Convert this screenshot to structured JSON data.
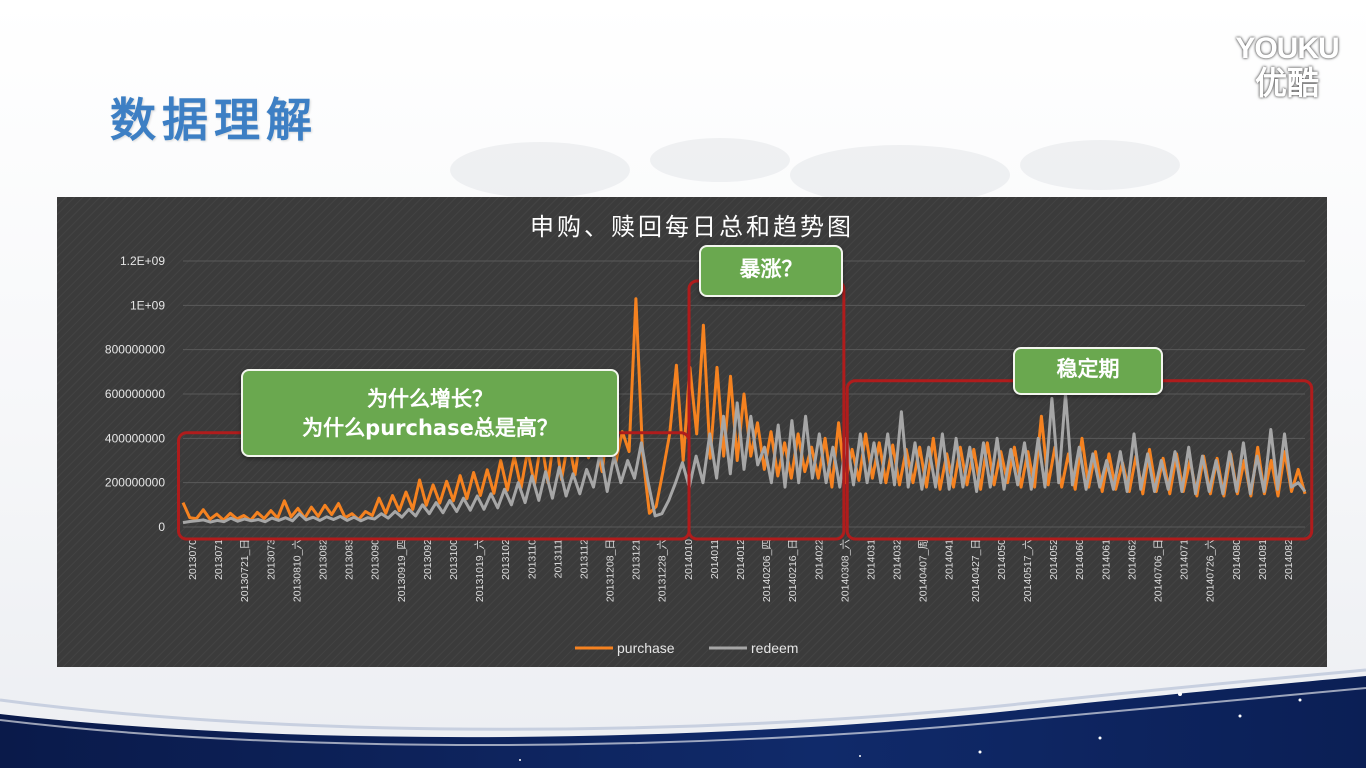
{
  "slide": {
    "title": "数据理解",
    "logo_line1": "YOUKU",
    "logo_line2": "优酷"
  },
  "chart_data": {
    "type": "line",
    "title": "申购、赎回每日总和趋势图",
    "xlabel": "",
    "ylabel": "",
    "ylim": [
      0,
      1200000000
    ],
    "ytick_labels": [
      "0",
      "200000000",
      "400000000",
      "600000000",
      "800000000",
      "1E+09",
      "1.2E+09"
    ],
    "ytick_values": [
      0,
      200000000,
      400000000,
      600000000,
      800000000,
      1000000000,
      1200000000
    ],
    "grid": true,
    "legend": "bottom",
    "xtick_labels": [
      "2013070",
      "2013071",
      "20130721_日",
      "2013073",
      "20130810_六",
      "2013082",
      "2013083",
      "2013090",
      "20130919_四",
      "2013092",
      "2013100",
      "20131019_六",
      "2013102",
      "2013110",
      "2013111",
      "2013112",
      "20131208_日",
      "2013121",
      "20131228_六",
      "2014010",
      "2014011",
      "2014012",
      "20140206_四",
      "20140216_日",
      "2014022",
      "20140308_六",
      "2014031",
      "2014032",
      "20140407_周",
      "2014041",
      "20140427_日",
      "2014050",
      "20140517_六",
      "2014052",
      "2014060",
      "2014061",
      "2014062",
      "20140706_日",
      "2014071",
      "20140726_六",
      "2014080",
      "2014081",
      "2014082"
    ],
    "series": [
      {
        "name": "purchase",
        "color": "#f58220",
        "values": [
          110000000,
          42000000,
          38000000,
          78000000,
          35000000,
          58000000,
          31000000,
          62000000,
          36000000,
          52000000,
          30000000,
          66000000,
          38000000,
          74000000,
          40000000,
          118000000,
          46000000,
          84000000,
          40000000,
          90000000,
          48000000,
          98000000,
          56000000,
          106000000,
          42000000,
          60000000,
          34000000,
          70000000,
          52000000,
          130000000,
          62000000,
          142000000,
          74000000,
          158000000,
          80000000,
          212000000,
          98000000,
          190000000,
          108000000,
          206000000,
          118000000,
          232000000,
          128000000,
          246000000,
          142000000,
          258000000,
          152000000,
          300000000,
          166000000,
          320000000,
          176000000,
          346000000,
          190000000,
          392000000,
          200000000,
          430000000,
          214000000,
          394000000,
          236000000,
          452000000,
          312000000,
          396000000,
          250000000,
          492000000,
          288000000,
          430000000,
          340000000,
          1030000000,
          330000000,
          62000000,
          92000000,
          250000000,
          420000000,
          730000000,
          300000000,
          720000000,
          420000000,
          910000000,
          310000000,
          720000000,
          320000000,
          680000000,
          300000000,
          600000000,
          320000000,
          470000000,
          260000000,
          430000000,
          230000000,
          380000000,
          220000000,
          420000000,
          250000000,
          360000000,
          220000000,
          400000000,
          180000000,
          470000000,
          200000000,
          350000000,
          210000000,
          420000000,
          220000000,
          380000000,
          200000000,
          370000000,
          190000000,
          350000000,
          200000000,
          360000000,
          180000000,
          400000000,
          170000000,
          330000000,
          180000000,
          360000000,
          190000000,
          350000000,
          170000000,
          380000000,
          190000000,
          340000000,
          200000000,
          360000000,
          180000000,
          340000000,
          180000000,
          500000000,
          190000000,
          360000000,
          180000000,
          330000000,
          170000000,
          400000000,
          180000000,
          340000000,
          160000000,
          330000000,
          170000000,
          290000000,
          160000000,
          320000000,
          150000000,
          350000000,
          160000000,
          310000000,
          150000000,
          330000000,
          160000000,
          300000000,
          140000000,
          320000000,
          150000000,
          310000000,
          140000000,
          330000000,
          150000000,
          300000000,
          140000000,
          360000000,
          150000000,
          300000000,
          140000000,
          340000000,
          160000000,
          260000000,
          150000000
        ]
      },
      {
        "name": "redeem",
        "color": "#a6a6a6",
        "values": [
          20000000,
          25000000,
          28000000,
          32000000,
          22000000,
          30000000,
          24000000,
          40000000,
          26000000,
          36000000,
          28000000,
          34000000,
          24000000,
          40000000,
          30000000,
          42000000,
          28000000,
          60000000,
          32000000,
          44000000,
          30000000,
          46000000,
          34000000,
          48000000,
          30000000,
          44000000,
          28000000,
          42000000,
          36000000,
          60000000,
          40000000,
          70000000,
          44000000,
          80000000,
          50000000,
          100000000,
          60000000,
          110000000,
          64000000,
          120000000,
          70000000,
          130000000,
          76000000,
          140000000,
          80000000,
          150000000,
          86000000,
          170000000,
          100000000,
          200000000,
          110000000,
          230000000,
          120000000,
          250000000,
          130000000,
          270000000,
          140000000,
          240000000,
          150000000,
          260000000,
          180000000,
          340000000,
          160000000,
          320000000,
          200000000,
          300000000,
          220000000,
          380000000,
          200000000,
          50000000,
          60000000,
          120000000,
          200000000,
          290000000,
          180000000,
          320000000,
          200000000,
          420000000,
          220000000,
          500000000,
          240000000,
          560000000,
          260000000,
          500000000,
          280000000,
          360000000,
          200000000,
          460000000,
          180000000,
          480000000,
          200000000,
          500000000,
          220000000,
          420000000,
          200000000,
          360000000,
          180000000,
          400000000,
          190000000,
          420000000,
          200000000,
          380000000,
          200000000,
          420000000,
          190000000,
          520000000,
          180000000,
          380000000,
          170000000,
          360000000,
          180000000,
          420000000,
          170000000,
          400000000,
          180000000,
          360000000,
          160000000,
          380000000,
          180000000,
          400000000,
          170000000,
          350000000,
          190000000,
          380000000,
          170000000,
          400000000,
          180000000,
          580000000,
          200000000,
          600000000,
          190000000,
          360000000,
          170000000,
          330000000,
          180000000,
          300000000,
          170000000,
          340000000,
          160000000,
          420000000,
          170000000,
          330000000,
          160000000,
          300000000,
          170000000,
          340000000,
          160000000,
          360000000,
          150000000,
          320000000,
          160000000,
          300000000,
          150000000,
          340000000,
          160000000,
          380000000,
          150000000,
          320000000,
          160000000,
          440000000,
          170000000,
          420000000,
          180000000,
          200000000,
          160000000
        ]
      }
    ],
    "annotations": [
      {
        "lines": [
          "为什么增长？",
          "为什么purchase总是高？"
        ]
      },
      {
        "lines": [
          "暴涨？"
        ]
      },
      {
        "lines": [
          "稳定期"
        ]
      }
    ]
  }
}
